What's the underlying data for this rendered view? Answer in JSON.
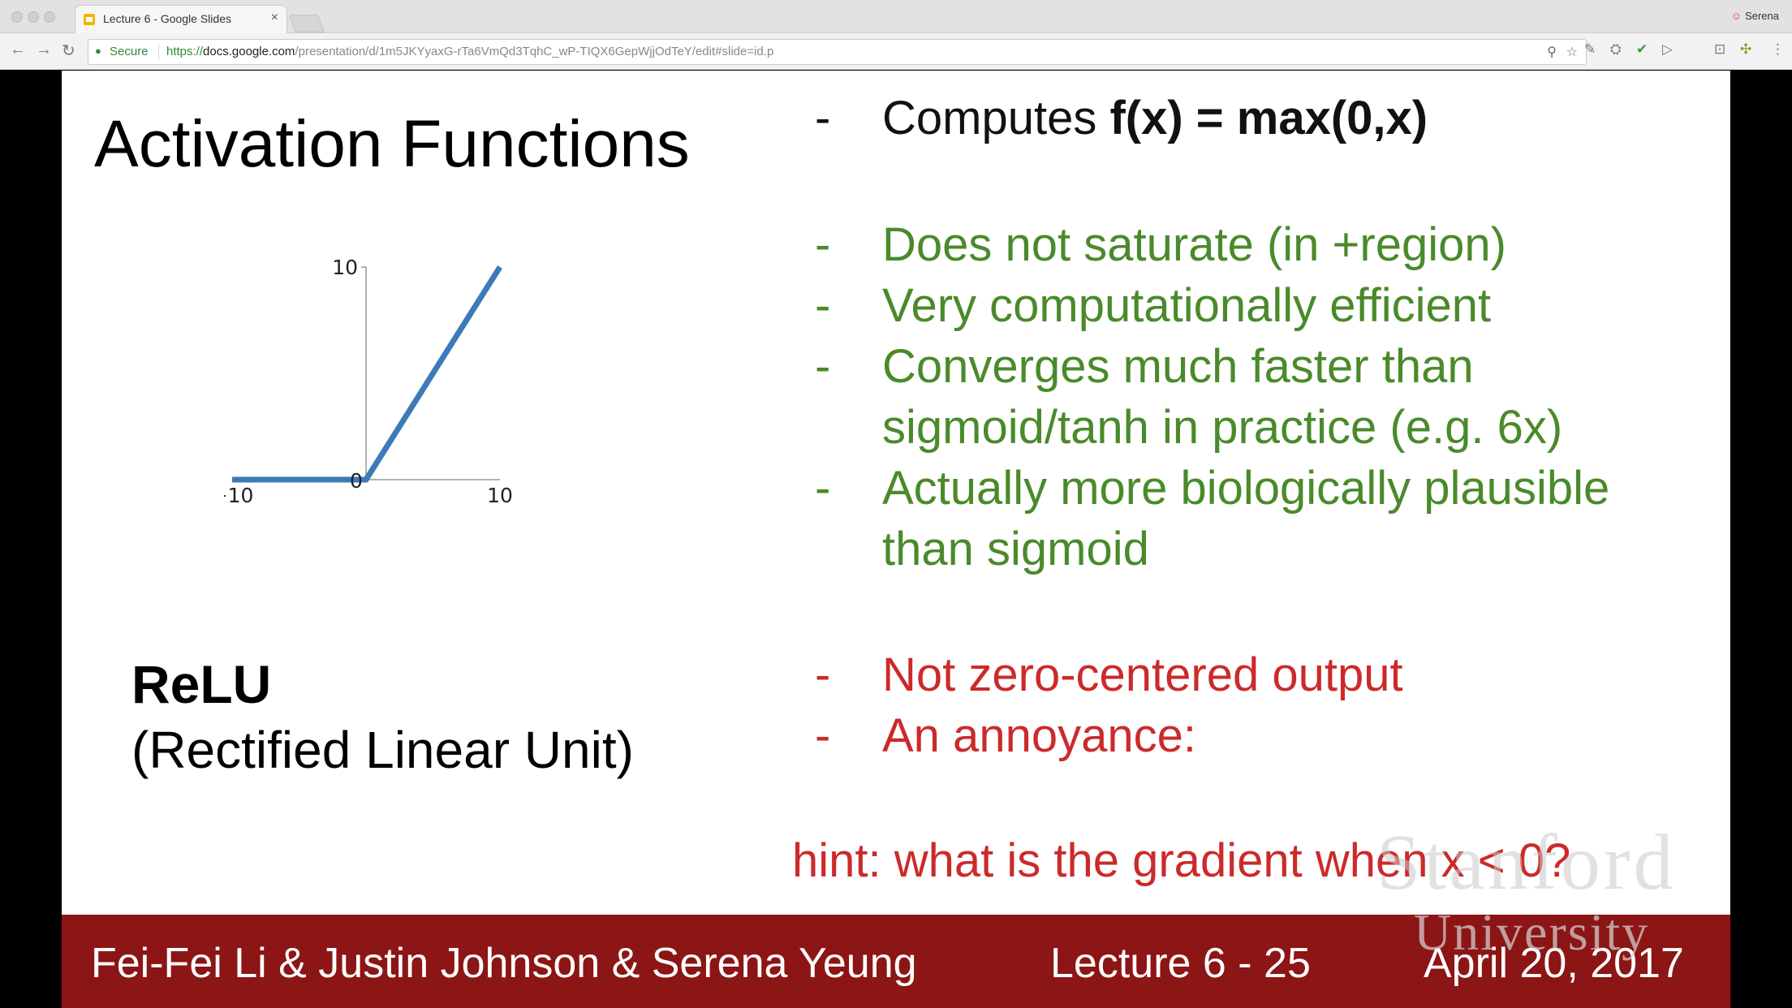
{
  "browser": {
    "tab_title": "Lecture 6 - Google Slides",
    "tab_close": "×",
    "profile_name": "Serena",
    "secure_label": "Secure",
    "url_scheme": "https://",
    "url_host": "docs.google.com",
    "url_path": "/presentation/d/1m5JKYyaxG-rTa6VmQd3TqhC_wP-TIQX6GepWjjOdTeY/edit#slide=id.p",
    "icons": {
      "back": "←",
      "forward": "→",
      "reload": "↻",
      "lock": "🔒",
      "zoom": "⚲",
      "star": "☆",
      "ext1": "✎",
      "ext2": "⛭",
      "ext3": "✔",
      "ext4": "▷",
      "ext5": "⊡",
      "ext6": "✣",
      "menu": "⋮"
    }
  },
  "slide": {
    "title": "Activation Functions",
    "relu_name": "ReLU",
    "relu_full": "(Rectified Linear Unit)",
    "bullets_top": [
      {
        "dash": "-",
        "prefix": "Computes ",
        "formula": "f(x) = max(0,x)"
      }
    ],
    "bullets_pros": [
      {
        "dash": "-",
        "text": "Does not saturate (in +region)"
      },
      {
        "dash": "-",
        "text": "Very computationally efficient"
      },
      {
        "dash": "-",
        "text": "Converges much faster than"
      },
      {
        "dash": "",
        "text": "sigmoid/tanh in practice (e.g. 6x)"
      },
      {
        "dash": "-",
        "text": "Actually more biologically plausible"
      },
      {
        "dash": "",
        "text": "than sigmoid"
      }
    ],
    "bullets_cons": [
      {
        "dash": "-",
        "text": "Not zero-centered output"
      },
      {
        "dash": "-",
        "text": "An annoyance:"
      }
    ],
    "hint": "hint: what is the gradient when x < 0?",
    "footer": {
      "authors": "Fei-Fei Li & Justin Johnson & Serena Yeung",
      "lecture": "Lecture 6 - 25",
      "date": "April 20, 2017"
    },
    "watermark": {
      "line1": "Stanford",
      "line2": "University"
    },
    "colors": {
      "green": "#4a8a2a",
      "red": "#cc2a2a",
      "footer": "#8c1515",
      "line": "#3d7ab8"
    }
  },
  "chart_data": {
    "type": "line",
    "x": [
      -10,
      0,
      10
    ],
    "series": [
      {
        "values": [
          0,
          0,
          10
        ]
      }
    ],
    "xlim": [
      -10,
      10
    ],
    "ylim": [
      0,
      10
    ],
    "x_ticks": [
      "−10",
      "0",
      "10"
    ],
    "y_ticks": [
      "10"
    ]
  }
}
